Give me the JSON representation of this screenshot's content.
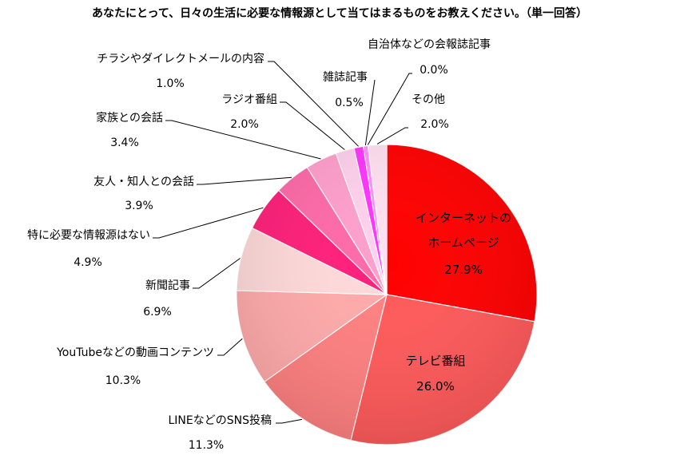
{
  "chart_data": {
    "type": "pie",
    "title": "あなたにとって、日々の生活に必要な情報源として当てはまるものをお教えください。（単一回答）",
    "unit": "%",
    "slices": [
      {
        "label": "インターネットの\nホームページ",
        "value": 27.9,
        "display": "27.9%",
        "color": "#ff0000"
      },
      {
        "label": "テレビ番組",
        "value": 26.0,
        "display": "26.0%",
        "color": "#ff5a5a"
      },
      {
        "label": "LINEなどのSNS投稿",
        "value": 11.3,
        "display": "11.3%",
        "color": "#ff8080"
      },
      {
        "label": "YouTubeなどの動画コンテンツ",
        "value": 10.3,
        "display": "10.3%",
        "color": "#ffaaaa"
      },
      {
        "label": "新聞記事",
        "value": 6.9,
        "display": "6.9%",
        "color": "#ffd9d9"
      },
      {
        "label": "特に必要な情報源はない",
        "value": 4.9,
        "display": "4.9%",
        "color": "#ff1f7a"
      },
      {
        "label": "友人・知人との会話",
        "value": 3.9,
        "display": "3.9%",
        "color": "#ff6aa8"
      },
      {
        "label": "家族との会話",
        "value": 3.4,
        "display": "3.4%",
        "color": "#ff9fcc"
      },
      {
        "label": "ラジオ番組",
        "value": 2.0,
        "display": "2.0%",
        "color": "#ffd0ec"
      },
      {
        "label": "チラシやダイレクトメールの内容",
        "value": 1.0,
        "display": "1.0%",
        "color": "#ff33ff"
      },
      {
        "label": "雑誌記事",
        "value": 0.5,
        "display": "0.5%",
        "color": "#ff8cff"
      },
      {
        "label": "自治体などの会報誌記事",
        "value": 0.0,
        "display": "0.0%",
        "color": "#ffc6ff"
      },
      {
        "label": "その他",
        "value": 2.0,
        "display": "2.0%",
        "color": "#ffe0f0"
      }
    ]
  }
}
